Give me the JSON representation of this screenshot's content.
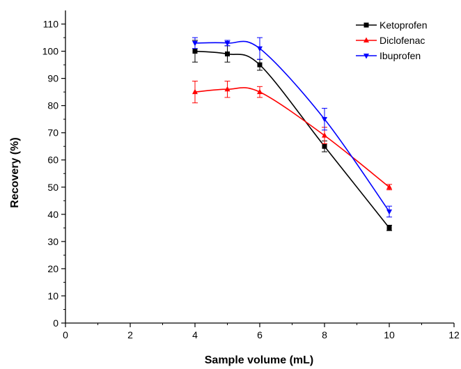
{
  "chart_data": {
    "type": "line",
    "title": "",
    "xlabel": "Sample volume (mL)",
    "ylabel": "Recovery (%)",
    "xlim": [
      0,
      12
    ],
    "ylim": [
      0,
      115
    ],
    "xticks": [
      0,
      2,
      4,
      6,
      8,
      10,
      12
    ],
    "yticks": [
      0,
      10,
      20,
      30,
      40,
      50,
      60,
      70,
      80,
      90,
      100,
      110
    ],
    "grid": false,
    "legend_position": "top-right",
    "x": [
      4,
      5,
      6,
      8,
      10
    ],
    "series": [
      {
        "name": "Ketoprofen",
        "color": "#000000",
        "marker": "square",
        "values": [
          100,
          99,
          95,
          65,
          35
        ],
        "errors": [
          4,
          3,
          2,
          2,
          1
        ]
      },
      {
        "name": "Diclofenac",
        "color": "#ff0000",
        "marker": "triangle-up",
        "values": [
          85,
          86,
          85,
          69,
          50
        ],
        "errors": [
          4,
          3,
          2,
          3,
          1
        ]
      },
      {
        "name": "Ibuprofen",
        "color": "#0000ff",
        "marker": "triangle-down",
        "values": [
          103,
          103,
          101,
          75,
          41
        ],
        "errors": [
          2,
          1,
          4,
          4,
          2
        ]
      }
    ]
  }
}
